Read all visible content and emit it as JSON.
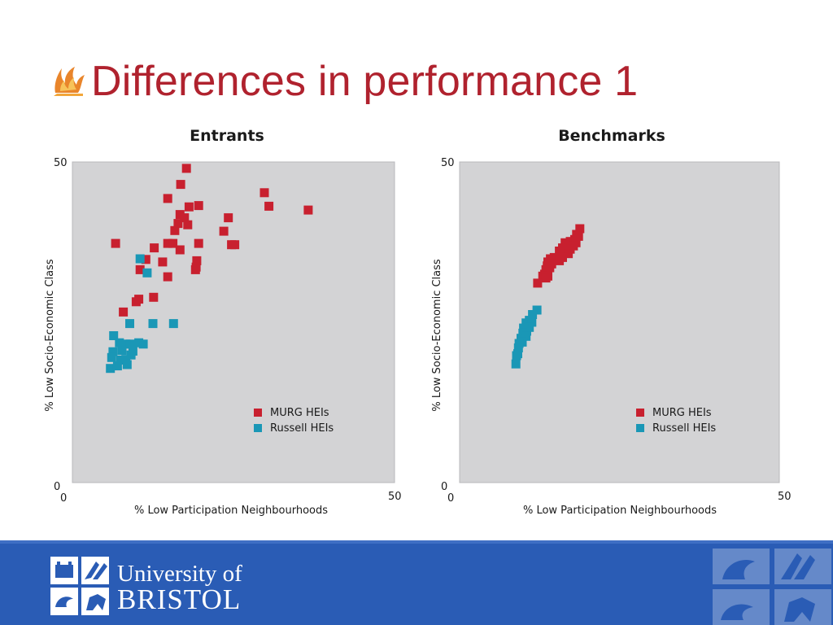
{
  "slide": {
    "title": "Differences in performance 1",
    "accent_color": "#b0222e",
    "bullet_icon": "flame-bullet-icon"
  },
  "colors": {
    "murg": "#c8202f",
    "russell": "#1a97b6",
    "plot_bg": "#d3d3d5",
    "footer": "#2a5cb5"
  },
  "chart_data": [
    {
      "type": "scatter",
      "title": "Entrants",
      "xlabel": "% Low Participation Neighbourhoods",
      "ylabel": "% Low Socio-Economic Class",
      "xlim": [
        0,
        50
      ],
      "ylim": [
        0,
        50
      ],
      "x_ticks": [
        "0",
        "50"
      ],
      "y_ticks": [
        "0",
        "50"
      ],
      "legend_position": "bottom-right",
      "series": [
        {
          "name": "MURG HEIs",
          "color": "#c8202f",
          "points": [
            [
              17.7,
              49
            ],
            [
              16.8,
              46.5
            ],
            [
              14.8,
              44.3
            ],
            [
              18.1,
              43
            ],
            [
              19.6,
              43.2
            ],
            [
              16.7,
              41.8
            ],
            [
              17.4,
              41.3
            ],
            [
              16.4,
              40.4
            ],
            [
              24.2,
              41.3
            ],
            [
              17.9,
              40.2
            ],
            [
              15.9,
              39.3
            ],
            [
              29.8,
              45.2
            ],
            [
              30.5,
              43.1
            ],
            [
              36.6,
              42.5
            ],
            [
              23.5,
              39.2
            ],
            [
              19.6,
              37.3
            ],
            [
              14.8,
              37.3
            ],
            [
              15.6,
              37.3
            ],
            [
              12.7,
              36.6
            ],
            [
              16.7,
              36.3
            ],
            [
              24.7,
              37.1
            ],
            [
              25.2,
              37.1
            ],
            [
              6.7,
              37.3
            ],
            [
              11.4,
              34.8
            ],
            [
              14,
              34.4
            ],
            [
              19.3,
              34.6
            ],
            [
              19.2,
              33.6
            ],
            [
              10.5,
              33.2
            ],
            [
              19.1,
              33.2
            ],
            [
              14.8,
              32.1
            ],
            [
              12.6,
              28.9
            ],
            [
              10.3,
              28.6
            ],
            [
              9.9,
              28.2
            ],
            [
              7.9,
              26.6
            ]
          ]
        },
        {
          "name": "Russell HEIs",
          "color": "#1a97b6",
          "points": [
            [
              10.5,
              34.9
            ],
            [
              11.6,
              32.7
            ],
            [
              8.9,
              24.8
            ],
            [
              12.5,
              24.8
            ],
            [
              15.7,
              24.8
            ],
            [
              6.4,
              22.9
            ],
            [
              7.3,
              21.8
            ],
            [
              8.3,
              21.6
            ],
            [
              9,
              21.6
            ],
            [
              10.3,
              21.8
            ],
            [
              11,
              21.6
            ],
            [
              6.3,
              20.4
            ],
            [
              7.7,
              20.6
            ],
            [
              9.4,
              20.5
            ],
            [
              6.1,
              19.5
            ],
            [
              7.5,
              19.1
            ],
            [
              8.3,
              19.2
            ],
            [
              9.1,
              19.9
            ],
            [
              5.9,
              17.8
            ],
            [
              7,
              18.2
            ],
            [
              8.5,
              18.4
            ]
          ]
        }
      ]
    },
    {
      "type": "scatter",
      "title": "Benchmarks",
      "xlabel": "% Low Participation Neighbourhoods",
      "ylabel": "% Low Socio-Economic Class",
      "xlim": [
        0,
        50
      ],
      "ylim": [
        0,
        50
      ],
      "x_ticks": [
        "0",
        "50"
      ],
      "y_ticks": [
        "0",
        "50"
      ],
      "legend_position": "bottom-right",
      "series": [
        {
          "name": "MURG HEIs",
          "color": "#c8202f",
          "points": [
            [
              18.8,
              39.6
            ],
            [
              18.3,
              38.7
            ],
            [
              18.6,
              38.4
            ],
            [
              18,
              37.9
            ],
            [
              17.3,
              37.6
            ],
            [
              18.2,
              37.4
            ],
            [
              16.5,
              37.4
            ],
            [
              17.8,
              36.9
            ],
            [
              16.1,
              36.6
            ],
            [
              17.3,
              36.4
            ],
            [
              15.6,
              36.1
            ],
            [
              16.6,
              36
            ],
            [
              15.8,
              35.6
            ],
            [
              17,
              35.7
            ],
            [
              14.8,
              35.1
            ],
            [
              16.1,
              35.1
            ],
            [
              14.2,
              34.9
            ],
            [
              15.6,
              34.6
            ],
            [
              13.8,
              34.4
            ],
            [
              14.4,
              34.1
            ],
            [
              13.7,
              33.8
            ],
            [
              13.5,
              33.2
            ],
            [
              14.1,
              33.5
            ],
            [
              13.3,
              32.5
            ],
            [
              13.8,
              32.2
            ],
            [
              13,
              32.2
            ],
            [
              13.5,
              31.9
            ],
            [
              12.2,
              31.1
            ]
          ]
        },
        {
          "name": "Russell HEIs",
          "color": "#1a97b6",
          "points": [
            [
              12.1,
              26.9
            ],
            [
              11.4,
              26.2
            ],
            [
              10.9,
              25.3
            ],
            [
              10.4,
              24.9
            ],
            [
              11.3,
              25
            ],
            [
              10.9,
              24.2
            ],
            [
              10,
              24.1
            ],
            [
              10.5,
              23.6
            ],
            [
              9.9,
              23.3
            ],
            [
              10.4,
              22.8
            ],
            [
              9.6,
              22.5
            ],
            [
              9.8,
              21.9
            ],
            [
              9.3,
              21.7
            ],
            [
              9.2,
              21
            ],
            [
              9.1,
              20.1
            ],
            [
              8.9,
              19.8
            ],
            [
              8.8,
              18.5
            ]
          ]
        }
      ]
    }
  ],
  "footer": {
    "university_line1": "University of",
    "university_line2": "BRISTOL"
  }
}
